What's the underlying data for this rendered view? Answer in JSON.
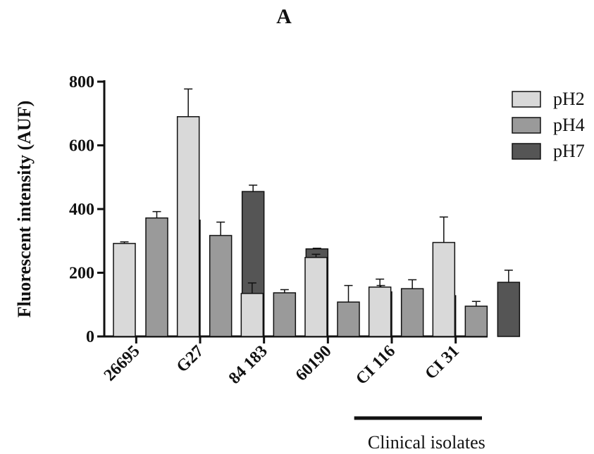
{
  "chart_data": {
    "type": "bar",
    "title": "A",
    "ylabel": "Fluorescent intensity (AUF)",
    "xlabel": "",
    "ylim": [
      0,
      800
    ],
    "yticks": [
      0,
      200,
      400,
      600,
      800
    ],
    "categories": [
      "26695",
      "G27",
      "84 183",
      "60190",
      "CI 116",
      "CI 31"
    ],
    "series": [
      {
        "name": "pH2",
        "color": "#d9d9d9",
        "values": [
          292,
          690,
          135,
          248,
          155,
          295
        ],
        "errors": [
          5,
          87,
          33,
          10,
          25,
          80
        ]
      },
      {
        "name": "pH4",
        "color": "#9a9a9a",
        "values": [
          372,
          317,
          137,
          108,
          150,
          95
        ],
        "errors": [
          20,
          42,
          10,
          52,
          28,
          15
        ]
      },
      {
        "name": "pH7",
        "color": "#555555",
        "values": [
          365,
          455,
          275,
          140,
          128,
          170
        ],
        "errors": [
          45,
          20,
          2,
          20,
          13,
          38
        ]
      }
    ],
    "legend_position": "top-right",
    "grid": false,
    "group_annotation": {
      "label": "Clinical isolates",
      "spans": [
        "CI 116",
        "CI 31"
      ]
    }
  }
}
